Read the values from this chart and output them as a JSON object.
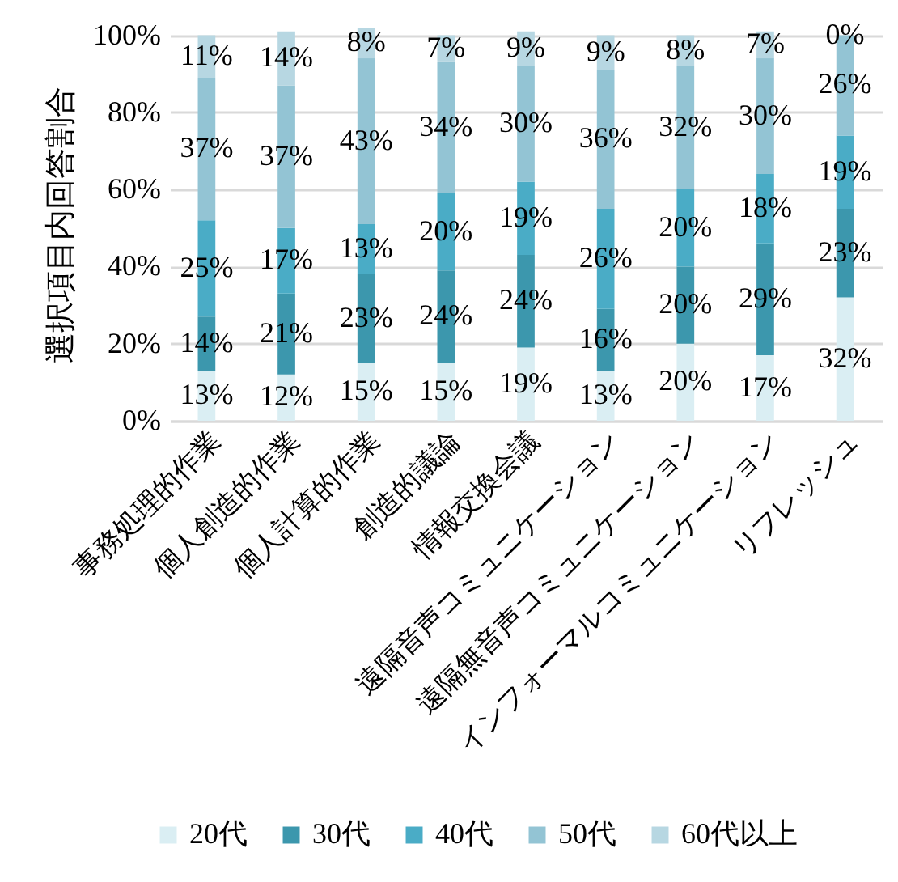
{
  "chart_data": {
    "type": "bar",
    "stacked": true,
    "ylabel": "選択項目内回答割合",
    "categories": [
      "事務処理的作業",
      "個人創造的作業",
      "個人計算的作業",
      "創造的議論",
      "情報交換会議",
      "遠隔音声コミュニケーション",
      "遠隔無音声コミュニケーション",
      "インフォーマルコミュニケーション",
      "リフレッシュ"
    ],
    "series": [
      {
        "name": "20代",
        "color": "#daeef3",
        "values": [
          13,
          12,
          15,
          15,
          19,
          13,
          20,
          17,
          32
        ],
        "value_labels": [
          "13%",
          "12%",
          "15%",
          "15%",
          "19%",
          "13%",
          "20%",
          "17%",
          "32%"
        ]
      },
      {
        "name": "30代",
        "color": "#3c97ad",
        "values": [
          14,
          21,
          23,
          24,
          24,
          16,
          20,
          29,
          23
        ],
        "value_labels": [
          "14%",
          "21%",
          "23%",
          "24%",
          "24%",
          "16%",
          "20%",
          "29%",
          "23%"
        ]
      },
      {
        "name": "40代",
        "color": "#4aacc6",
        "values": [
          25,
          17,
          13,
          20,
          19,
          26,
          20,
          18,
          19
        ],
        "value_labels": [
          "25%",
          "17%",
          "13%",
          "20%",
          "19%",
          "26%",
          "20%",
          "18%",
          "19%"
        ]
      },
      {
        "name": "50代",
        "color": "#93c4d4",
        "values": [
          37,
          37,
          43,
          34,
          30,
          36,
          32,
          30,
          26
        ],
        "value_labels": [
          "37%",
          "37%",
          "43%",
          "34%",
          "30%",
          "36%",
          "32%",
          "30%",
          "26%"
        ]
      },
      {
        "name": "60代以上",
        "color": "#b7d7e2",
        "values": [
          11,
          14,
          8,
          7,
          9,
          9,
          8,
          7,
          0
        ],
        "value_labels": [
          "11%",
          "14%",
          "8%",
          "7%",
          "9%",
          "9%",
          "8%",
          "7%",
          "0%"
        ]
      }
    ],
    "ylim": [
      0,
      102
    ],
    "yticks": [
      {
        "value": 0,
        "label": "0%"
      },
      {
        "value": 20,
        "label": "20%"
      },
      {
        "value": 40,
        "label": "40%"
      },
      {
        "value": 60,
        "label": "60%"
      },
      {
        "value": 80,
        "label": "80%"
      },
      {
        "value": 100,
        "label": "100%"
      }
    ],
    "grid": "y",
    "legend": "bottom"
  }
}
